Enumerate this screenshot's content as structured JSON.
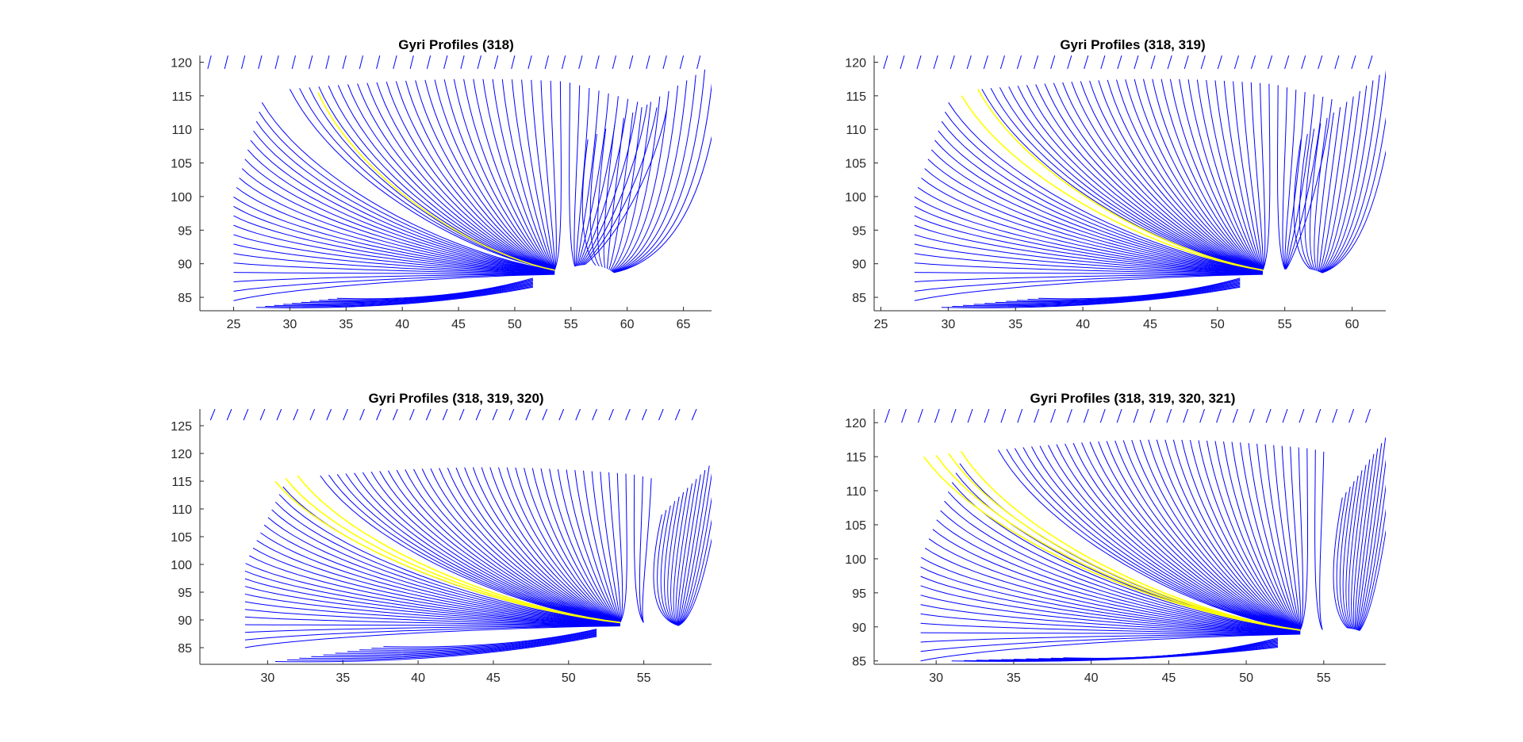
{
  "chart_data": [
    {
      "type": "line",
      "title": "Gyri Profiles (318)",
      "xlabel": "",
      "ylabel": "",
      "xlim": [
        22,
        67.5
      ],
      "ylim": [
        83,
        121
      ],
      "xticks": [
        25,
        30,
        35,
        40,
        45,
        50,
        55,
        60,
        65
      ],
      "yticks": [
        85,
        90,
        95,
        100,
        105,
        110,
        115,
        120
      ],
      "grid": false,
      "focus": [
        54.5,
        88.5
      ],
      "hole": {
        "center": [
          56.5,
          86
        ],
        "radius": 3.2
      },
      "highlight_starts": [
        [
          32.5,
          115.5
        ]
      ],
      "series": [
        {
          "color": "#0000ff",
          "description": "fan of streamlines converging to focus"
        },
        {
          "color": "#ffff00",
          "description": "highlighted profile"
        }
      ]
    },
    {
      "type": "line",
      "title": "Gyri Profiles (318, 319)",
      "xlabel": "",
      "ylabel": "",
      "xlim": [
        24.5,
        62.5
      ],
      "ylim": [
        83,
        121
      ],
      "xticks": [
        25,
        30,
        35,
        40,
        45,
        50,
        55,
        60
      ],
      "yticks": [
        85,
        90,
        95,
        100,
        105,
        110,
        115,
        120
      ],
      "grid": false,
      "focus": [
        54.2,
        88.5
      ],
      "hole": {
        "center": [
          56,
          86
        ],
        "radius": 2.8
      },
      "highlight_starts": [
        [
          31,
          115
        ],
        [
          32.2,
          116
        ]
      ],
      "series": [
        {
          "color": "#0000ff",
          "description": "fan of streamlines converging to focus"
        },
        {
          "color": "#ffff00",
          "description": "highlighted profiles"
        }
      ]
    },
    {
      "type": "line",
      "title": "Gyri Profiles (318, 319, 320)",
      "xlabel": "",
      "ylabel": "",
      "xlim": [
        25.5,
        59.5
      ],
      "ylim": [
        82,
        128
      ],
      "xticks": [
        30,
        35,
        40,
        45,
        50,
        55
      ],
      "yticks": [
        85,
        90,
        95,
        100,
        105,
        110,
        115,
        120,
        125
      ],
      "grid": false,
      "focus": [
        54.2,
        89
      ],
      "hole": {
        "center": [
          56,
          86
        ],
        "radius": 2.6
      },
      "highlight_starts": [
        [
          30.5,
          115
        ],
        [
          31.2,
          115.5
        ],
        [
          32,
          116
        ]
      ],
      "series": [
        {
          "color": "#0000ff",
          "description": "fan of streamlines converging to focus"
        },
        {
          "color": "#ffff00",
          "description": "highlighted profiles"
        }
      ]
    },
    {
      "type": "line",
      "title": "Gyri Profiles (318, 319, 320, 321)",
      "xlabel": "",
      "ylabel": "",
      "xlim": [
        26,
        59
      ],
      "ylim": [
        84.5,
        122
      ],
      "xticks": [
        30,
        35,
        40,
        45,
        50,
        55
      ],
      "yticks": [
        85,
        90,
        95,
        100,
        105,
        110,
        115,
        120
      ],
      "grid": false,
      "focus": [
        54.2,
        89
      ],
      "hole": {
        "center": [
          56,
          87
        ],
        "radius": 2.4
      },
      "highlight_starts": [
        [
          29.2,
          115
        ],
        [
          30,
          115.2
        ],
        [
          30.8,
          115.5
        ],
        [
          31.6,
          115.8
        ]
      ],
      "series": [
        {
          "color": "#0000ff",
          "description": "fan of streamlines converging to focus"
        },
        {
          "color": "#ffff00",
          "description": "highlighted profiles"
        }
      ]
    }
  ]
}
